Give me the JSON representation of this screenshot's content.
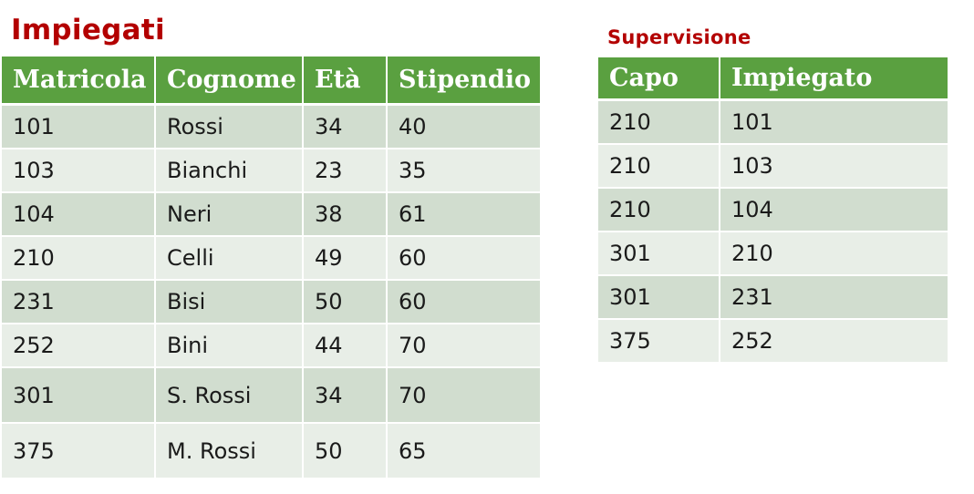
{
  "impiegati": {
    "title": "Impiegati",
    "columns": [
      "Matricola",
      "Cognome",
      "Età",
      "Stipendio"
    ],
    "rows": [
      [
        "101",
        "Rossi",
        "34",
        "40"
      ],
      [
        "103",
        "Bianchi",
        "23",
        "35"
      ],
      [
        "104",
        "Neri",
        "38",
        "61"
      ],
      [
        "210",
        "Celli",
        "49",
        "60"
      ],
      [
        "231",
        "Bisi",
        "50",
        "60"
      ],
      [
        "252",
        "Bini",
        "44",
        "70"
      ],
      [
        "301",
        "S. Rossi",
        "34",
        "70"
      ],
      [
        "375",
        "M. Rossi",
        "50",
        "65"
      ]
    ]
  },
  "supervisione": {
    "title": "Supervisione",
    "columns": [
      "Capo",
      "Impiegato"
    ],
    "rows": [
      [
        "210",
        "101"
      ],
      [
        "210",
        "103"
      ],
      [
        "210",
        "104"
      ],
      [
        "301",
        "210"
      ],
      [
        "301",
        "231"
      ],
      [
        "375",
        "252"
      ]
    ]
  },
  "colors": {
    "title": "#b30000",
    "header_bg": "#5aa040",
    "row_dark": "#d1ddcf",
    "row_light": "#e8eee7"
  }
}
